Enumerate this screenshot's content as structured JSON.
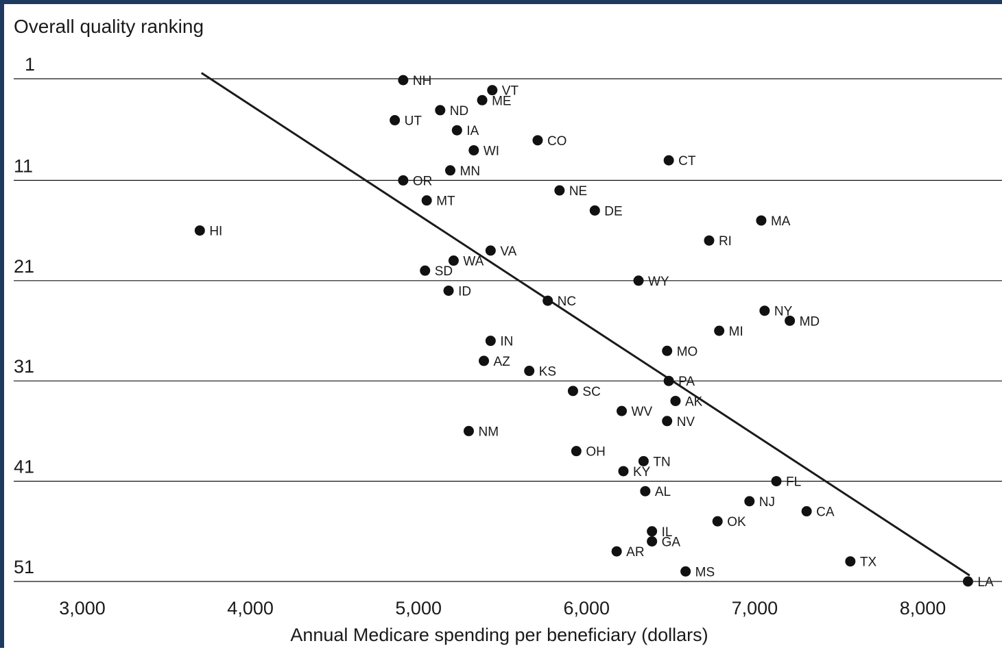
{
  "chart_data": {
    "type": "scatter",
    "title": "",
    "ylabel": "Overall quality ranking",
    "xlabel": "Annual Medicare spending per beneficiary (dollars)",
    "x_ticks": [
      3000,
      4000,
      5000,
      6000,
      7000,
      8000
    ],
    "x_tick_labels": [
      "3,000",
      "4,000",
      "5,000",
      "6,000",
      "7,000",
      "8,000"
    ],
    "y_ticks": [
      1,
      11,
      21,
      31,
      41,
      51
    ],
    "y_tick_labels": [
      "1",
      "11",
      "21",
      "31",
      "41",
      "51"
    ],
    "xlim": [
      2740,
      8500
    ],
    "ylim": [
      1,
      51
    ],
    "y_inverted": true,
    "grid": "horizontal",
    "trend_line": {
      "x": [
        3660,
        8230
      ],
      "y": [
        0.35,
        50.4
      ]
    },
    "points": [
      {
        "state": "NH",
        "x": 4860,
        "y": 1
      },
      {
        "state": "VT",
        "x": 5390,
        "y": 2
      },
      {
        "state": "ME",
        "x": 5330,
        "y": 3
      },
      {
        "state": "ND",
        "x": 5080,
        "y": 4
      },
      {
        "state": "UT",
        "x": 4810,
        "y": 5
      },
      {
        "state": "IA",
        "x": 5180,
        "y": 6
      },
      {
        "state": "CO",
        "x": 5660,
        "y": 7
      },
      {
        "state": "WI",
        "x": 5280,
        "y": 8
      },
      {
        "state": "CT",
        "x": 6440,
        "y": 9
      },
      {
        "state": "MN",
        "x": 5140,
        "y": 10
      },
      {
        "state": "OR",
        "x": 4860,
        "y": 11
      },
      {
        "state": "NE",
        "x": 5790,
        "y": 12
      },
      {
        "state": "MT",
        "x": 5000,
        "y": 13
      },
      {
        "state": "DE",
        "x": 6000,
        "y": 14
      },
      {
        "state": "MA",
        "x": 6990,
        "y": 15
      },
      {
        "state": "HI",
        "x": 3650,
        "y": 16
      },
      {
        "state": "RI",
        "x": 6680,
        "y": 17
      },
      {
        "state": "VA",
        "x": 5380,
        "y": 18
      },
      {
        "state": "WA",
        "x": 5160,
        "y": 19
      },
      {
        "state": "SD",
        "x": 4990,
        "y": 20
      },
      {
        "state": "WY",
        "x": 6260,
        "y": 21
      },
      {
        "state": "ID",
        "x": 5130,
        "y": 22
      },
      {
        "state": "NC",
        "x": 5720,
        "y": 23
      },
      {
        "state": "NY",
        "x": 7010,
        "y": 24
      },
      {
        "state": "MD",
        "x": 7160,
        "y": 25
      },
      {
        "state": "MI",
        "x": 6740,
        "y": 26
      },
      {
        "state": "IN",
        "x": 5380,
        "y": 27
      },
      {
        "state": "MO",
        "x": 6430,
        "y": 28
      },
      {
        "state": "AZ",
        "x": 5340,
        "y": 29
      },
      {
        "state": "KS",
        "x": 5610,
        "y": 30
      },
      {
        "state": "PA",
        "x": 6440,
        "y": 31
      },
      {
        "state": "SC",
        "x": 5870,
        "y": 32
      },
      {
        "state": "AK",
        "x": 6480,
        "y": 33
      },
      {
        "state": "WV",
        "x": 6160,
        "y": 34
      },
      {
        "state": "NV",
        "x": 6430,
        "y": 35
      },
      {
        "state": "NM",
        "x": 5250,
        "y": 36
      },
      {
        "state": "OH",
        "x": 5890,
        "y": 38
      },
      {
        "state": "TN",
        "x": 6290,
        "y": 39
      },
      {
        "state": "KY",
        "x": 6170,
        "y": 40
      },
      {
        "state": "FL",
        "x": 7080,
        "y": 41
      },
      {
        "state": "AL",
        "x": 6300,
        "y": 42
      },
      {
        "state": "NJ",
        "x": 6920,
        "y": 43
      },
      {
        "state": "CA",
        "x": 7260,
        "y": 44
      },
      {
        "state": "OK",
        "x": 6730,
        "y": 45
      },
      {
        "state": "IL",
        "x": 6340,
        "y": 46
      },
      {
        "state": "GA",
        "x": 6340,
        "y": 47
      },
      {
        "state": "AR",
        "x": 6130,
        "y": 48
      },
      {
        "state": "TX",
        "x": 7520,
        "y": 49
      },
      {
        "state": "MS",
        "x": 6540,
        "y": 50
      },
      {
        "state": "LA",
        "x": 8220,
        "y": 51
      }
    ]
  },
  "colors": {
    "frame": "#1f3a60",
    "points": "#111111",
    "grid": "#111111",
    "trend": "#1a1a1a",
    "text": "#1a1a1a"
  }
}
